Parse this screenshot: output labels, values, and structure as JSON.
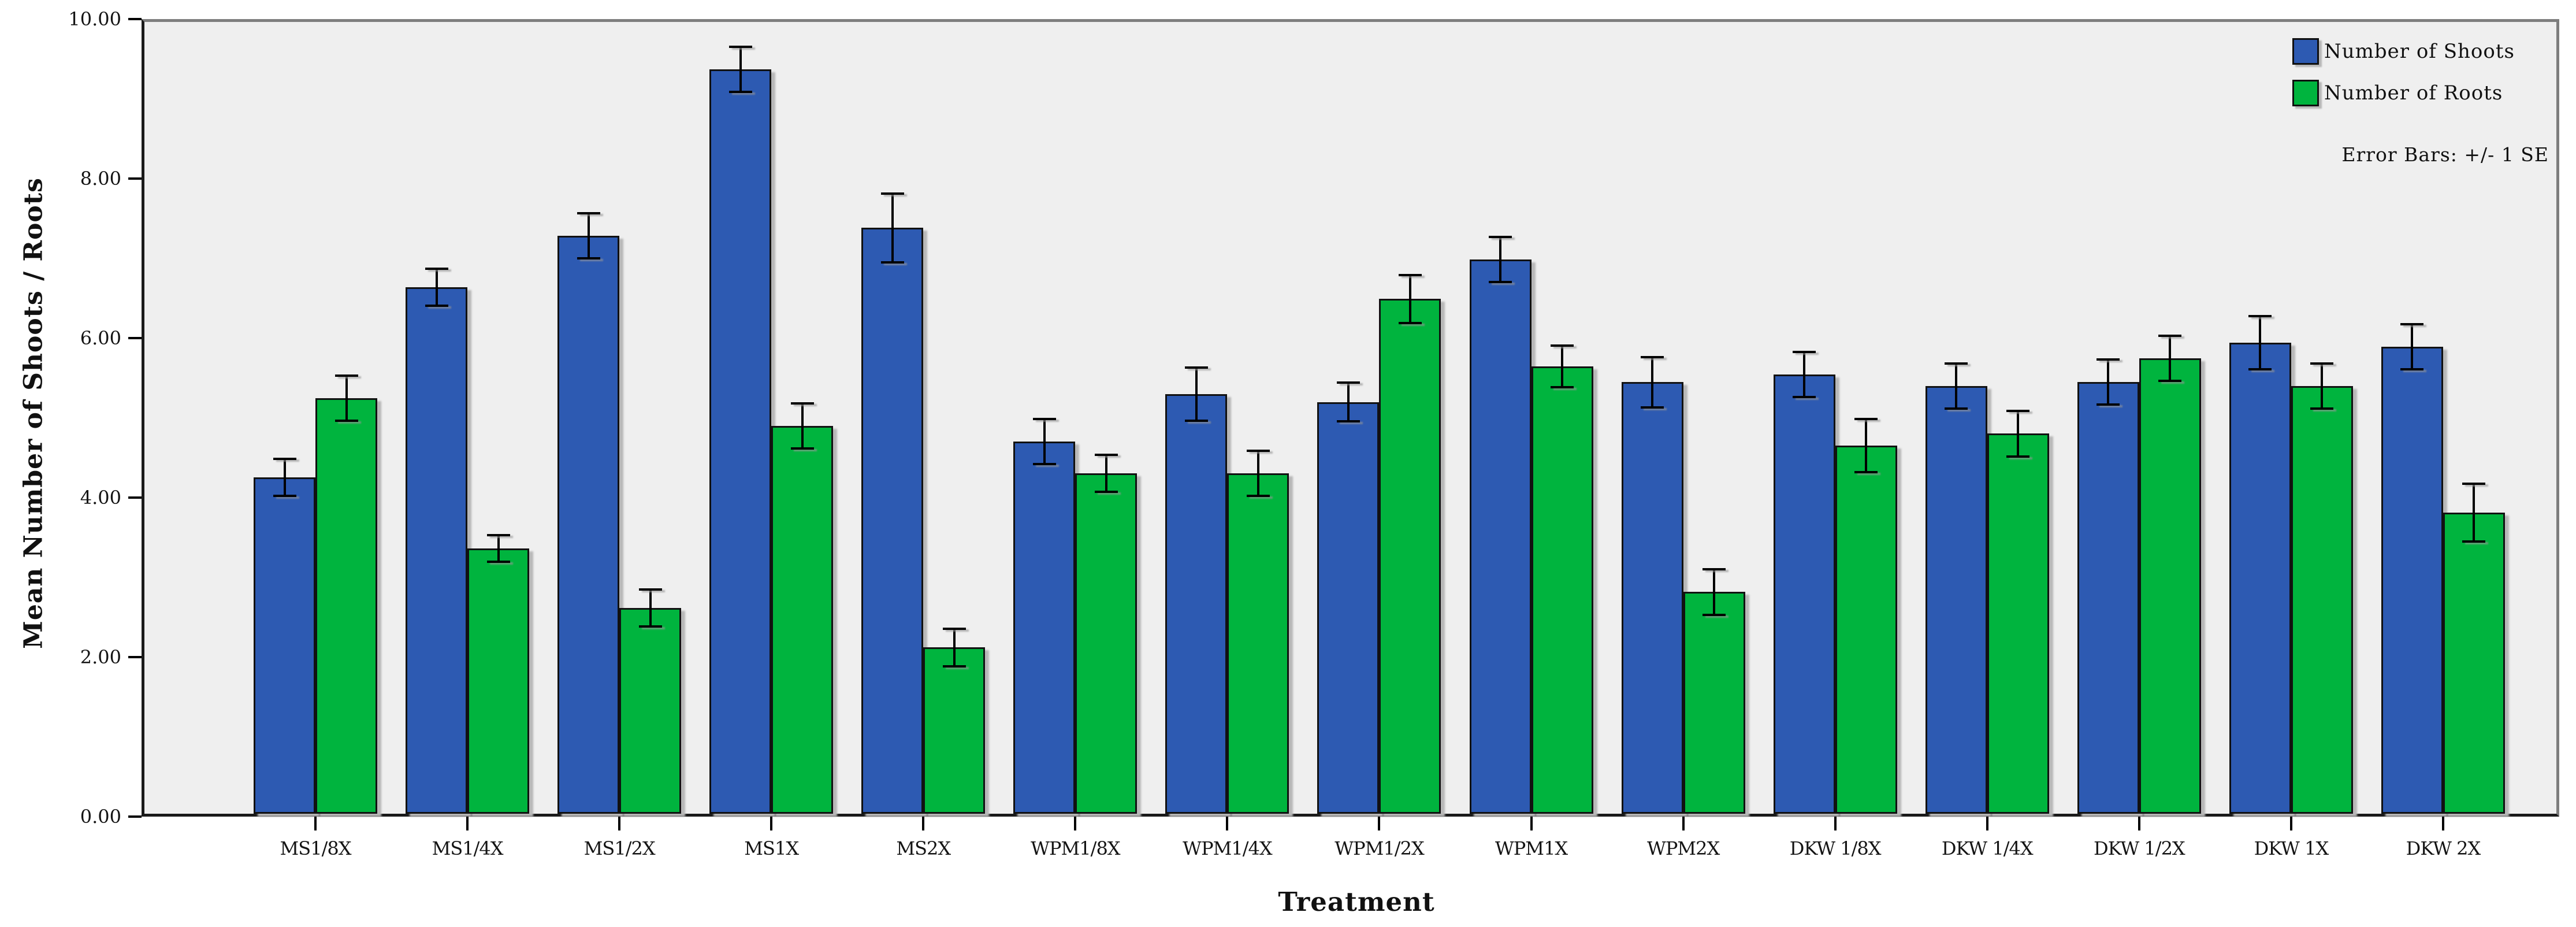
{
  "colors": {
    "shoots": "#2d5ab2",
    "roots": "#00b43e",
    "plot_background": "#efefef",
    "frame_gray": "#7e7e7e",
    "axis_black": "#1a1a1a"
  },
  "chart_data": {
    "type": "bar",
    "title": "",
    "xlabel": "Treatment",
    "ylabel": "Mean Number of Shoots / Roots",
    "ylim": [
      0,
      10
    ],
    "y_ticks": [
      "0.00",
      "2.00",
      "4.00",
      "6.00",
      "8.00",
      "10.00"
    ],
    "grid": false,
    "legend_position": "top-right-inside",
    "legend_note": "Error Bars: +/- 1 SE",
    "error_bars": "+/- 1 SE",
    "categories": [
      "MS1/8X",
      "MS1/4X",
      "MS1/2X",
      "MS1X",
      "MS2X",
      "WPM1/8X",
      "WPM1/4X",
      "WPM1/2X",
      "WPM1X",
      "WPM2X",
      "DKW 1/8X",
      "DKW 1/4X",
      "DKW 1/2X",
      "DKW 1X",
      "DKW 2X"
    ],
    "series": [
      {
        "name": "Number of Shoots",
        "color_key": "shoots",
        "values": [
          4.25,
          6.65,
          7.3,
          9.4,
          7.4,
          4.7,
          5.3,
          5.2,
          7.0,
          5.45,
          5.55,
          5.4,
          5.45,
          5.95,
          5.9
        ],
        "se": [
          0.25,
          0.25,
          0.3,
          0.3,
          0.45,
          0.3,
          0.35,
          0.26,
          0.3,
          0.33,
          0.3,
          0.3,
          0.3,
          0.35,
          0.3
        ]
      },
      {
        "name": "Number of Roots",
        "color_key": "roots",
        "values": [
          5.25,
          3.35,
          2.6,
          4.9,
          2.1,
          4.3,
          4.3,
          6.5,
          5.65,
          2.8,
          4.65,
          4.8,
          5.75,
          5.4,
          3.8
        ],
        "se": [
          0.3,
          0.18,
          0.25,
          0.3,
          0.25,
          0.25,
          0.3,
          0.32,
          0.28,
          0.3,
          0.35,
          0.3,
          0.3,
          0.3,
          0.38
        ]
      }
    ]
  }
}
